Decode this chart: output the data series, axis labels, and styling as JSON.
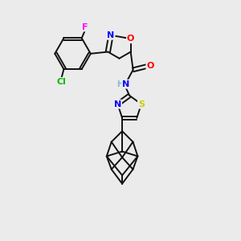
{
  "background_color": "#ebebeb",
  "atom_colors": {
    "N": "#0000ff",
    "O": "#ff0000",
    "S": "#cccc00",
    "Cl": "#00bb00",
    "F": "#ff00ff",
    "C": "#000000",
    "H": "#7fbfbf"
  },
  "bond_color": "#111111",
  "bond_lw": 1.4,
  "fig_width": 3.0,
  "fig_height": 3.0,
  "dpi": 100
}
